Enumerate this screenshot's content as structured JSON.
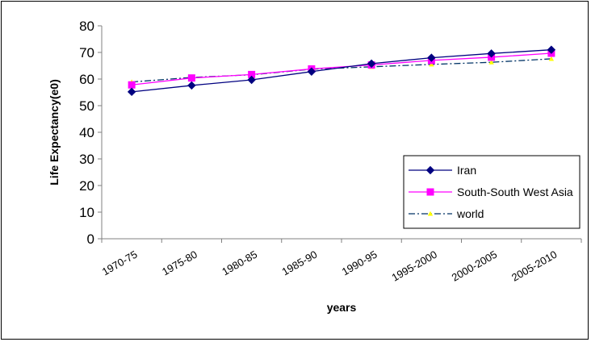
{
  "chart_data": {
    "type": "line",
    "title": "",
    "xlabel": "years",
    "ylabel": "Life Expectancy(e0)",
    "categories": [
      "1970-75",
      "1975-80",
      "1980-85",
      "1985-90",
      "1990-95",
      "1995-2000",
      "2000-2005",
      "2005-2010"
    ],
    "ylim": [
      0,
      80
    ],
    "yticks": [
      "0",
      "10",
      "20",
      "30",
      "40",
      "50",
      "60",
      "70",
      "80"
    ],
    "grid": false,
    "legend_position": "bottom-right",
    "series": [
      {
        "name": "Iran",
        "values": [
          55.2,
          57.6,
          59.7,
          62.8,
          65.8,
          68.0,
          69.6,
          71.0
        ],
        "color": "#000080",
        "marker": "diamond",
        "line_style": "solid"
      },
      {
        "name": "South-South West Asia",
        "values": [
          57.8,
          60.4,
          61.7,
          63.8,
          65.3,
          67.0,
          68.2,
          69.7
        ],
        "color": "#ff00ff",
        "marker": "square",
        "line_style": "solid"
      },
      {
        "name": "world",
        "values": [
          58.9,
          60.6,
          61.6,
          63.7,
          64.6,
          65.5,
          66.3,
          67.6
        ],
        "color": "#003366",
        "marker": "triangle",
        "marker_color": "#ffff00",
        "line_style": "dash-dot"
      }
    ]
  }
}
